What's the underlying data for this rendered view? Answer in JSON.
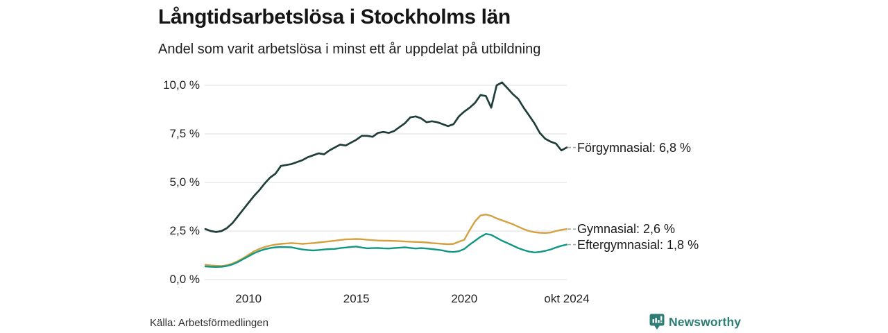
{
  "header": {
    "title": "Långtidsarbetslösa i Stockholms län",
    "subtitle": "Andel som varit arbetslösa i minst ett år uppdelat på utbildning"
  },
  "footer": {
    "source": "Källa: Arbetsförmedlingen",
    "brand_name": "Newsworthy",
    "brand_icon": "newsworthy-barchart-badge-icon",
    "brand_color": "#2e7e76"
  },
  "colors": {
    "gridline": "#e3e3e3",
    "connector": "#a8a8a8",
    "axis_text": "#222222"
  },
  "chart_data": {
    "type": "line",
    "title": "Långtidsarbetslösa i Stockholms län",
    "subtitle": "Andel som varit arbetslösa i minst ett år uppdelat på utbildning",
    "xlabel": "",
    "ylabel": "",
    "x_start": 2008.0,
    "x_step": 0.25,
    "x_range": [
      2008.0,
      2024.75
    ],
    "x_end_label": "okt 2024",
    "ylim": [
      0,
      10.3
    ],
    "grid": true,
    "legend_position": "right-end-labels",
    "yticks": [
      {
        "value": 0,
        "label": "0,0 %"
      },
      {
        "value": 2.5,
        "label": "2,5 %"
      },
      {
        "value": 5,
        "label": "5,0 %"
      },
      {
        "value": 7.5,
        "label": "7,5 %"
      },
      {
        "value": 10,
        "label": "10,0 %"
      }
    ],
    "xticks": [
      {
        "value": 2010,
        "label": "2010"
      },
      {
        "value": 2015,
        "label": "2015"
      },
      {
        "value": 2020,
        "label": "2020"
      },
      {
        "value": 2024.75,
        "label": "okt 2024"
      }
    ],
    "series": [
      {
        "name": "Förgymnasial",
        "end_label": "Förgymnasial: 6,8 %",
        "end_value_pct": 6.8,
        "color": "#1f3d3a",
        "values": [
          2.6,
          2.5,
          2.45,
          2.5,
          2.65,
          2.9,
          3.25,
          3.6,
          3.95,
          4.3,
          4.6,
          4.95,
          5.25,
          5.45,
          5.85,
          5.9,
          5.95,
          6.05,
          6.15,
          6.3,
          6.4,
          6.5,
          6.45,
          6.65,
          6.8,
          6.95,
          6.9,
          7.05,
          7.2,
          7.4,
          7.4,
          7.35,
          7.55,
          7.6,
          7.55,
          7.65,
          7.85,
          8.05,
          8.35,
          8.4,
          8.3,
          8.1,
          8.15,
          8.1,
          8.0,
          7.9,
          8.0,
          8.4,
          8.65,
          8.85,
          9.1,
          9.5,
          9.45,
          8.85,
          10.0,
          10.15,
          9.85,
          9.55,
          9.3,
          8.85,
          8.45,
          8.05,
          7.55,
          7.25,
          7.1,
          7.0,
          6.65,
          6.8
        ]
      },
      {
        "name": "Gymnasial",
        "end_label": "Gymnasial: 2,6 %",
        "end_value_pct": 2.6,
        "color": "#d5a03f",
        "values": [
          0.76,
          0.73,
          0.71,
          0.7,
          0.74,
          0.82,
          0.95,
          1.1,
          1.28,
          1.45,
          1.58,
          1.68,
          1.75,
          1.8,
          1.84,
          1.86,
          1.88,
          1.86,
          1.84,
          1.86,
          1.88,
          1.91,
          1.94,
          1.97,
          2.0,
          2.04,
          2.07,
          2.08,
          2.09,
          2.08,
          2.05,
          2.03,
          2.01,
          2.0,
          2.0,
          1.99,
          1.98,
          1.96,
          1.95,
          1.94,
          1.93,
          1.91,
          1.88,
          1.86,
          1.84,
          1.82,
          1.84,
          1.95,
          2.05,
          2.55,
          3.0,
          3.3,
          3.35,
          3.28,
          3.15,
          3.05,
          2.95,
          2.85,
          2.72,
          2.6,
          2.5,
          2.44,
          2.41,
          2.4,
          2.42,
          2.5,
          2.56,
          2.6
        ]
      },
      {
        "name": "Eftergymnasial",
        "end_label": "Eftergymnasial: 1,8 %",
        "end_value_pct": 1.8,
        "color": "#0f9784",
        "values": [
          0.68,
          0.66,
          0.65,
          0.66,
          0.7,
          0.78,
          0.9,
          1.05,
          1.2,
          1.35,
          1.47,
          1.56,
          1.62,
          1.66,
          1.68,
          1.67,
          1.66,
          1.6,
          1.55,
          1.52,
          1.5,
          1.52,
          1.55,
          1.57,
          1.58,
          1.62,
          1.65,
          1.68,
          1.7,
          1.65,
          1.61,
          1.62,
          1.63,
          1.61,
          1.6,
          1.62,
          1.64,
          1.66,
          1.63,
          1.6,
          1.62,
          1.6,
          1.57,
          1.54,
          1.5,
          1.44,
          1.42,
          1.46,
          1.58,
          1.8,
          2.0,
          2.2,
          2.35,
          2.3,
          2.15,
          2.0,
          1.88,
          1.75,
          1.62,
          1.52,
          1.44,
          1.4,
          1.42,
          1.48,
          1.55,
          1.65,
          1.74,
          1.8
        ]
      }
    ]
  }
}
